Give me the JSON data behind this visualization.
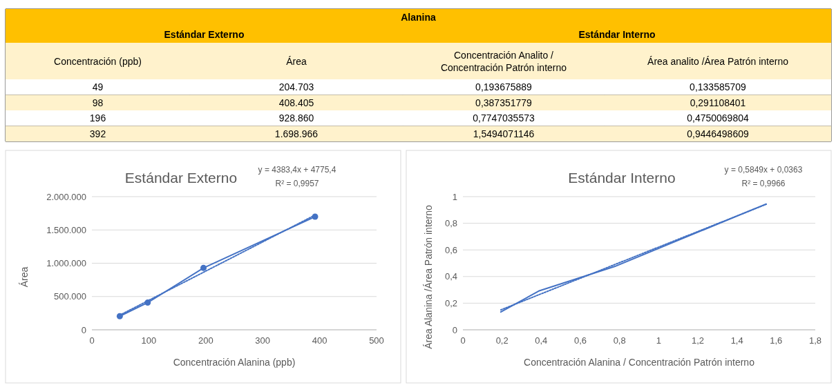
{
  "chart_data": [
    {
      "type": "other",
      "title": "Alanina",
      "annotations": [
        "Estándar Externo",
        "Estándar Interno",
        "Concentración (ppb)",
        "Área",
        "Concentración Analito / Concentración Patrón interno",
        "Área analito /Área Patrón interno",
        "49",
        "204.703",
        "0,193675889",
        "0,133585709",
        "98",
        "408.405",
        "0,387351779",
        "0,291108401",
        "196",
        "928.860",
        "0,7747035573",
        "0,4750069804",
        "392",
        "1.698.966",
        "1,5494071146",
        "0,9446498609"
      ]
    },
    {
      "type": "line",
      "title": "Estándar Externo",
      "xlabel": "Concentración Alanina (ppb)",
      "ylabel": "Área",
      "annotations": [
        "y = 4383,4x + 4775,4",
        "R² = 0,9957"
      ],
      "grid": "y",
      "xlim": [
        0,
        500
      ],
      "xticks": [
        0,
        100,
        200,
        300,
        400,
        500
      ],
      "ylim": [
        0,
        2000000
      ],
      "yticks": [
        {
          "value": 0,
          "label": "0"
        },
        {
          "value": 500000,
          "label": "500.000"
        },
        {
          "value": 1000000,
          "label": "1.000.000"
        },
        {
          "value": 1500000,
          "label": "1.500.000"
        },
        {
          "value": 2000000,
          "label": "2.000.000"
        }
      ],
      "series": [
        {
          "color": "#4472c4",
          "x": [
            49,
            98,
            196,
            392
          ],
          "values": [
            204703,
            408405,
            928860,
            1698966
          ],
          "marker": "circle",
          "line_style": "solid"
        },
        {
          "color": "#4472c4",
          "x": [
            49,
            392
          ],
          "values": [
            219562,
            1723068
          ],
          "marker": "none",
          "line_style": "dotted"
        }
      ]
    },
    {
      "type": "line",
      "title": "Estándar Interno",
      "xlabel": "Concentración Alanina / Concentración Patrón interno",
      "ylabel": "Área Alanina /Área Patrón interno",
      "annotations": [
        "y = 0,5849x + 0,0363",
        "R² = 0,9966"
      ],
      "grid": "y",
      "xlim": [
        0,
        1.8
      ],
      "xticks": [
        0,
        {
          "value": 0.2,
          "label": "0,2"
        },
        {
          "value": 0.4,
          "label": "0,4"
        },
        {
          "value": 0.6,
          "label": "0,6"
        },
        {
          "value": 0.8,
          "label": "0,8"
        },
        1,
        {
          "value": 1.2,
          "label": "1,2"
        },
        {
          "value": 1.4,
          "label": "1,4"
        },
        {
          "value": 1.6,
          "label": "1,6"
        },
        {
          "value": 1.8,
          "label": "1,8"
        }
      ],
      "ylim": [
        0,
        1
      ],
      "yticks": [
        0,
        {
          "value": 0.2,
          "label": "0,2"
        },
        {
          "value": 0.4,
          "label": "0,4"
        },
        {
          "value": 0.6,
          "label": "0,6"
        },
        {
          "value": 0.8,
          "label": "0,8"
        },
        1
      ],
      "series": [
        {
          "color": "#4472c4",
          "x": [
            0.193675889,
            0.387351779,
            0.7747035573,
            1.5494071146
          ],
          "values": [
            0.133585709,
            0.291108401,
            0.4750069804,
            0.9446498609
          ],
          "marker": "none",
          "line_style": "solid"
        },
        {
          "color": "#4472c4",
          "x": [
            0.193675889,
            1.5494071146
          ],
          "values": [
            0.1496,
            0.9426
          ],
          "marker": "none",
          "line_style": "dotted"
        }
      ]
    }
  ]
}
